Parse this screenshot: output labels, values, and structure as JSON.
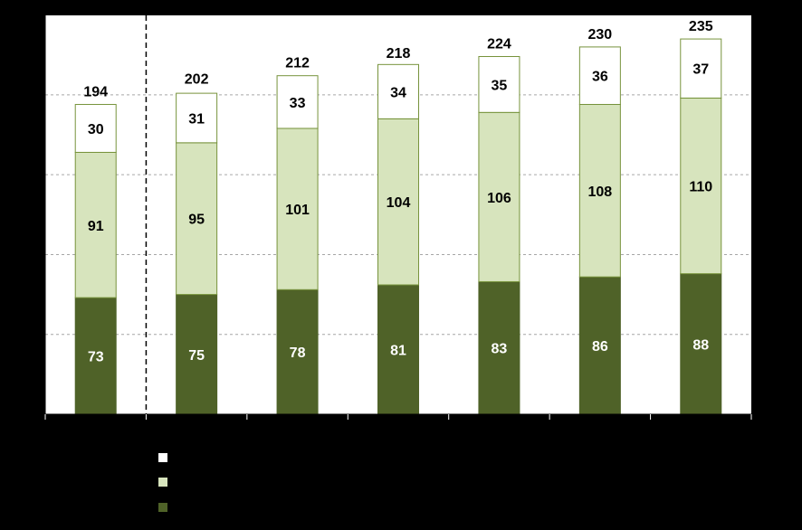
{
  "chart_data": {
    "type": "bar",
    "stacked": true,
    "categories": [
      "",
      "",
      "",
      "",
      "",
      "",
      ""
    ],
    "series": [
      {
        "values": [
          73,
          75,
          78,
          81,
          83,
          86,
          88
        ]
      },
      {
        "values": [
          91,
          95,
          101,
          104,
          106,
          108,
          110
        ]
      },
      {
        "values": [
          30,
          31,
          33,
          34,
          35,
          36,
          37
        ]
      }
    ],
    "totals": [
      194,
      202,
      212,
      218,
      224,
      230,
      235
    ],
    "ylim": [
      0,
      250
    ],
    "y_gridlines": [
      50,
      100,
      150,
      200
    ],
    "grid": true,
    "divider_after_category_index": 0,
    "legend_position": "bottom-left"
  },
  "colors": {
    "background": "#000000",
    "plot_background": "#ffffff",
    "series": [
      "#4f6228",
      "#d7e4bd",
      "#ffffff"
    ],
    "bar_border": "#77933c",
    "gridline": "#a6a6a6",
    "axis": "#000000",
    "label_dark": "#000000",
    "label_light": "#ffffff"
  }
}
